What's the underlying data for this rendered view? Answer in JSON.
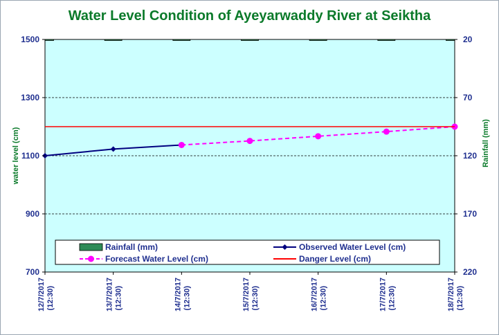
{
  "chart_data": {
    "type": "line",
    "title": "Water Level Condition of Ayeyarwaddy River at Seiktha",
    "ylabel": "water level (cm)",
    "y2label": "Rainfall (mm)",
    "ylim": [
      700,
      1500
    ],
    "y2lim": [
      220,
      20
    ],
    "yticks": [
      700,
      900,
      1100,
      1300,
      1500
    ],
    "y2ticks": [
      20,
      70,
      120,
      170,
      220
    ],
    "grid": "horizontal dashed",
    "legend_position": "bottom",
    "categories": [
      [
        "12/7/2017",
        "(12:30)"
      ],
      [
        "13/7/2017",
        "(12:30)"
      ],
      [
        "14/7/2017",
        "(12:30)"
      ],
      [
        "15/7/2017",
        "(12:30)"
      ],
      [
        "16/7/2017",
        "(12:30)"
      ],
      [
        "17/7/2017",
        "(12:30)"
      ],
      [
        "18/7/2017",
        "(12:30)"
      ]
    ],
    "series": [
      {
        "name": "Rainfall (mm)",
        "kind": "bar",
        "axis": "right",
        "color": "#2e8b57",
        "values": [
          20,
          0,
          0,
          0,
          0,
          0,
          0
        ]
      },
      {
        "name": "Observed Water Level (cm)",
        "kind": "line",
        "axis": "left",
        "color": "#00007f",
        "marker": "diamond",
        "values": [
          1100,
          1123,
          1137,
          null,
          null,
          null,
          null
        ]
      },
      {
        "name": "Forecast Water Level (cm)",
        "kind": "line",
        "axis": "left",
        "color": "#ff00ff",
        "dashed": true,
        "marker": "circle",
        "values": [
          null,
          null,
          1137,
          1151,
          1167,
          1183,
          1200
        ]
      },
      {
        "name": "Danger Level (cm)",
        "kind": "line",
        "axis": "left",
        "color": "#ff0000",
        "values": [
          1200,
          1200,
          1200,
          1200,
          1200,
          1200,
          1200
        ]
      }
    ],
    "colors": {
      "plot_background": "#ccffff",
      "axis_text": "#1f2f8f",
      "title": "#0b7a2a"
    }
  }
}
